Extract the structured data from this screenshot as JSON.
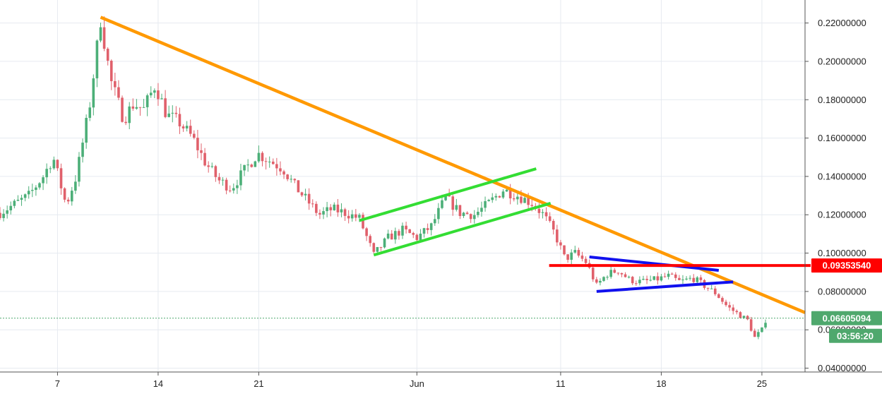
{
  "colors": {
    "up_candle": "#4caf78",
    "down_candle": "#e0606b",
    "grid": "#e6eaf0",
    "axis": "#555555",
    "orange_trendline": "#ff9900",
    "green_channel": "#33dd33",
    "blue_triangle": "#1111ee",
    "red_level": "#ff0000",
    "current_price_tag": "#4fa86d"
  },
  "chart_data": {
    "type": "candlestick",
    "x_axis": {
      "ticks": [
        {
          "label": "7",
          "day": 7
        },
        {
          "label": "14",
          "day": 14
        },
        {
          "label": "21",
          "day": 21
        },
        {
          "label": "Jun",
          "day": 32
        },
        {
          "label": "11",
          "day": 42
        },
        {
          "label": "18",
          "day": 49
        },
        {
          "label": "25",
          "day": 56
        }
      ],
      "range_days": [
        3,
        59
      ]
    },
    "y_axis": {
      "ticks": [
        "0.04000000",
        "0.06000000",
        "0.08000000",
        "0.10000000",
        "0.12000000",
        "0.14000000",
        "0.16000000",
        "0.18000000",
        "0.20000000",
        "0.22000000"
      ],
      "tick_values": [
        0.04,
        0.06,
        0.08,
        0.1,
        0.12,
        0.14,
        0.16,
        0.18,
        0.2,
        0.22
      ],
      "range": [
        0.038,
        0.232
      ]
    },
    "grid": true,
    "price_path": [
      [
        3,
        0.121
      ],
      [
        5,
        0.13
      ],
      [
        6,
        0.14
      ],
      [
        6.7,
        0.15
      ],
      [
        7.6,
        0.125
      ],
      [
        8.3,
        0.14
      ],
      [
        9.2,
        0.175
      ],
      [
        10.0,
        0.222
      ],
      [
        10.7,
        0.19
      ],
      [
        11.6,
        0.17
      ],
      [
        12.3,
        0.178
      ],
      [
        13.0,
        0.175
      ],
      [
        13.8,
        0.188
      ],
      [
        14.6,
        0.172
      ],
      [
        15.5,
        0.168
      ],
      [
        16.4,
        0.16
      ],
      [
        17.3,
        0.147
      ],
      [
        18.2,
        0.138
      ],
      [
        19.1,
        0.134
      ],
      [
        20.0,
        0.143
      ],
      [
        20.9,
        0.152
      ],
      [
        21.8,
        0.148
      ],
      [
        22.7,
        0.144
      ],
      [
        23.5,
        0.135
      ],
      [
        24.3,
        0.128
      ],
      [
        25.2,
        0.12
      ],
      [
        26.1,
        0.123
      ],
      [
        27.0,
        0.121
      ],
      [
        28.0,
        0.118
      ],
      [
        29.0,
        0.099
      ],
      [
        30.0,
        0.108
      ],
      [
        31.0,
        0.112
      ],
      [
        32.0,
        0.108
      ],
      [
        33.0,
        0.114
      ],
      [
        34.0,
        0.129
      ],
      [
        35.0,
        0.121
      ],
      [
        36.0,
        0.12
      ],
      [
        37.0,
        0.126
      ],
      [
        38.0,
        0.133
      ],
      [
        39.0,
        0.13
      ],
      [
        40.0,
        0.126
      ],
      [
        40.8,
        0.12
      ],
      [
        41.6,
        0.11
      ],
      [
        42.3,
        0.097
      ],
      [
        43.0,
        0.1
      ],
      [
        43.8,
        0.095
      ],
      [
        44.5,
        0.083
      ],
      [
        45.2,
        0.089
      ],
      [
        46.0,
        0.091
      ],
      [
        46.8,
        0.086
      ],
      [
        47.6,
        0.085
      ],
      [
        48.5,
        0.086
      ],
      [
        49.5,
        0.088
      ],
      [
        50.3,
        0.085
      ],
      [
        51.2,
        0.087
      ],
      [
        52.0,
        0.083
      ],
      [
        52.8,
        0.079
      ],
      [
        53.6,
        0.072
      ],
      [
        54.4,
        0.068
      ],
      [
        55.0,
        0.065
      ],
      [
        55.5,
        0.056
      ],
      [
        56.0,
        0.06
      ],
      [
        56.3,
        0.066
      ]
    ],
    "annotations": [
      {
        "kind": "orange_trendline",
        "points": [
          [
            10.0,
            0.223
          ],
          [
            59.0,
            0.069
          ]
        ]
      },
      {
        "kind": "green_channel_upper",
        "points": [
          [
            28.0,
            0.117
          ],
          [
            40.3,
            0.144
          ]
        ]
      },
      {
        "kind": "green_channel_lower",
        "points": [
          [
            29.0,
            0.099
          ],
          [
            41.3,
            0.126
          ]
        ]
      },
      {
        "kind": "blue_triangle_upper",
        "points": [
          [
            44.0,
            0.098
          ],
          [
            53.0,
            0.091
          ]
        ]
      },
      {
        "kind": "blue_triangle_lower",
        "points": [
          [
            44.5,
            0.08
          ],
          [
            54.0,
            0.085
          ]
        ]
      },
      {
        "kind": "red_resistance",
        "points": [
          [
            41.2,
            0.0935354
          ],
          [
            59.0,
            0.0935354
          ]
        ]
      }
    ],
    "price_labels": {
      "resistance": "0.09353540",
      "resistance_value": 0.0935354,
      "current": "0.06605094",
      "current_value": 0.06605094,
      "countdown": "03:56:20"
    }
  }
}
